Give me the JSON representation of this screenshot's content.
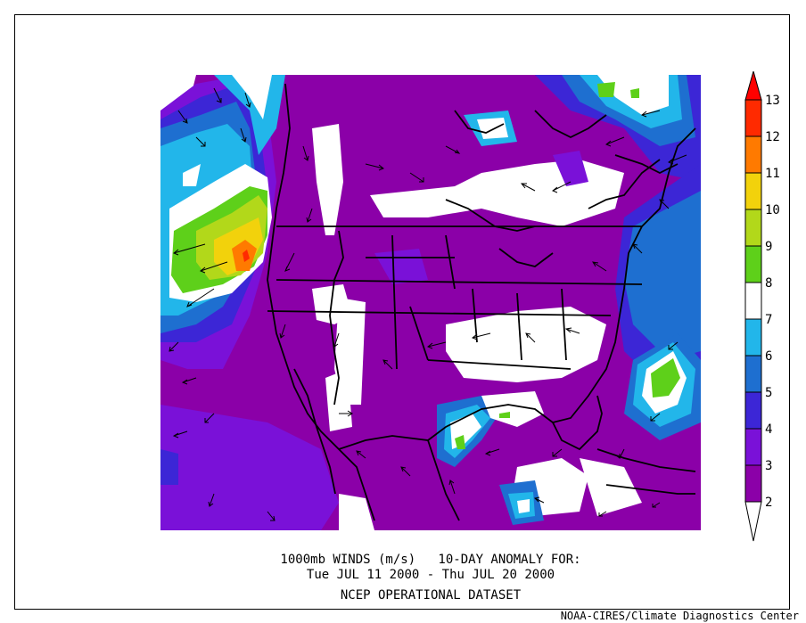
{
  "title": {
    "line1": "1000mb WINDS (m/s)   10-DAY ANOMALY FOR:",
    "line2": "Tue JUL 11 2000 - Thu JUL 20 2000",
    "line3": "NCEP OPERATIONAL DATASET"
  },
  "credit": "NOAA-CIRES/Climate Diagnostics Center",
  "colorbar": {
    "levels": [
      "2",
      "3",
      "4",
      "5",
      "6",
      "7",
      "8",
      "9",
      "10",
      "11",
      "12",
      "13"
    ],
    "colors": {
      "below_2": "#ffffff",
      "2-3": "#8b00a8",
      "3-4": "#7a11d8",
      "4-5": "#3c26d6",
      "5-6": "#1e6fd0",
      "6-7": "#22b6ea",
      "7-8": "#ffffff",
      "8-9": "#5ed01a",
      "9-10": "#b2d81a",
      "10-11": "#f2d20c",
      "11-12": "#ff7a00",
      "12-13": "#ff2a00",
      "above_13": "#ff0000"
    }
  }
}
